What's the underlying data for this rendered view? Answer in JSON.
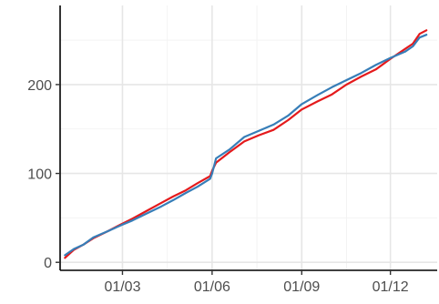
{
  "chart_data": {
    "type": "line",
    "title": "",
    "xlabel": "",
    "ylabel": "",
    "x_tick_labels": [
      "01/03",
      "01/06",
      "01/09",
      "01/12"
    ],
    "x_ticks_day_of_year": [
      60,
      152,
      244,
      335
    ],
    "x_minor_ticks_day_of_year": [
      106,
      198,
      290
    ],
    "y_ticks": [
      0,
      100,
      200
    ],
    "y_tick_labels": [
      "0",
      "100",
      "200"
    ],
    "y_minor_ticks": [
      50,
      150,
      250
    ],
    "xlim_day_of_year": [
      -4,
      383
    ],
    "ylim": [
      -9,
      289
    ],
    "grid": true,
    "legend": "none",
    "series": [
      {
        "color": "#e41a1c",
        "points": [
          [
            1,
            5
          ],
          [
            10,
            14
          ],
          [
            20,
            20
          ],
          [
            30,
            27
          ],
          [
            45,
            35
          ],
          [
            59,
            43
          ],
          [
            70,
            49
          ],
          [
            85,
            58
          ],
          [
            100,
            67
          ],
          [
            112,
            74
          ],
          [
            125,
            81
          ],
          [
            137,
            89
          ],
          [
            150,
            97
          ],
          [
            152,
            103
          ],
          [
            156,
            112
          ],
          [
            170,
            124
          ],
          [
            185,
            136
          ],
          [
            200,
            143
          ],
          [
            215,
            149
          ],
          [
            230,
            160
          ],
          [
            244,
            172
          ],
          [
            260,
            181
          ],
          [
            275,
            189
          ],
          [
            290,
            200
          ],
          [
            305,
            209
          ],
          [
            320,
            217
          ],
          [
            335,
            229
          ],
          [
            350,
            240
          ],
          [
            358,
            246
          ],
          [
            365,
            257
          ],
          [
            372,
            261
          ]
        ]
      },
      {
        "color": "#377eb8",
        "points": [
          [
            1,
            8
          ],
          [
            10,
            15
          ],
          [
            20,
            20
          ],
          [
            30,
            28
          ],
          [
            45,
            35
          ],
          [
            59,
            42
          ],
          [
            70,
            47
          ],
          [
            85,
            55
          ],
          [
            100,
            63
          ],
          [
            112,
            70
          ],
          [
            125,
            78
          ],
          [
            137,
            85
          ],
          [
            150,
            94
          ],
          [
            152,
            100
          ],
          [
            156,
            117
          ],
          [
            170,
            127
          ],
          [
            185,
            141
          ],
          [
            200,
            148
          ],
          [
            215,
            155
          ],
          [
            230,
            165
          ],
          [
            244,
            178
          ],
          [
            260,
            188
          ],
          [
            275,
            197
          ],
          [
            290,
            205
          ],
          [
            305,
            213
          ],
          [
            320,
            222
          ],
          [
            335,
            230
          ],
          [
            350,
            237
          ],
          [
            358,
            243
          ],
          [
            365,
            253
          ],
          [
            372,
            256
          ]
        ]
      }
    ]
  }
}
